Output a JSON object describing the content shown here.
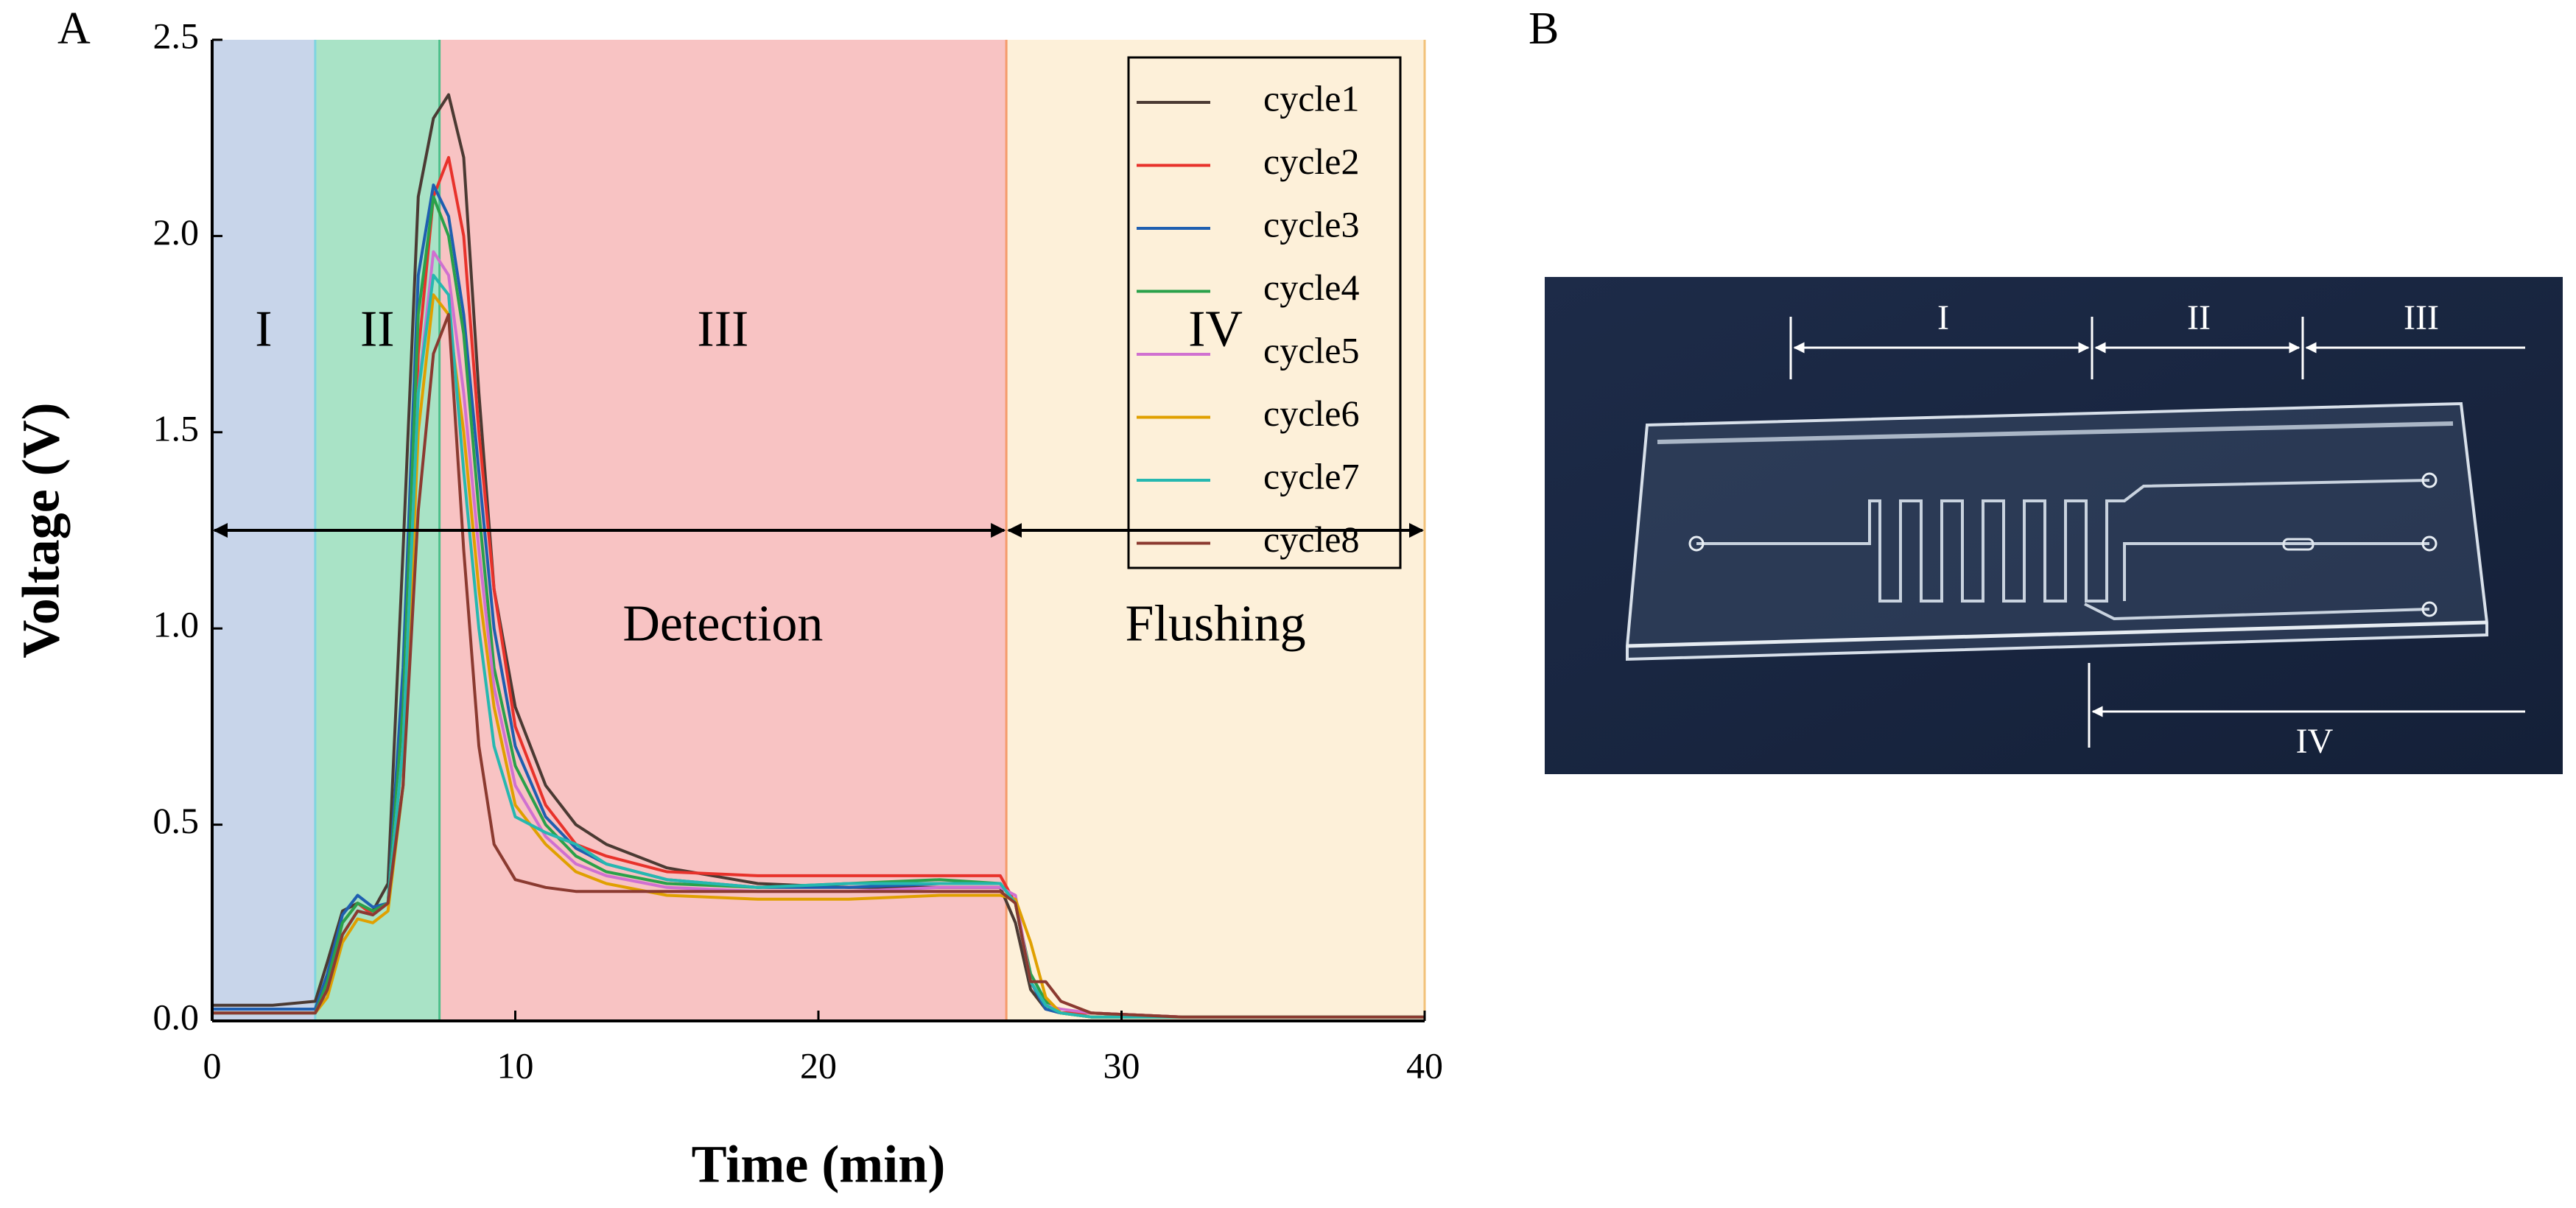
{
  "panels": [
    "A",
    "B"
  ],
  "chart_data": {
    "type": "line",
    "x_label": "Time (min)",
    "y_label": "Voltage (V)",
    "xlim": [
      0,
      40
    ],
    "ylim": [
      0,
      2.5
    ],
    "xticks": [
      0,
      10,
      20,
      30,
      40
    ],
    "yticks": [
      {
        "value": 0,
        "label": "0.0"
      },
      0.5,
      {
        "value": 1,
        "label": "1.0"
      },
      1.5,
      {
        "value": 2,
        "label": "2.0"
      },
      2.5
    ],
    "regions": [
      {
        "label": "I",
        "start": 0,
        "end": 3.4,
        "color": "#c8d5ea",
        "edge": "#7fd4e0"
      },
      {
        "label": "II",
        "start": 3.4,
        "end": 7.5,
        "color": "#a9e3c6",
        "edge": "#4cc08a"
      },
      {
        "label": "III",
        "start": 7.5,
        "end": 26.2,
        "color": "#f8c3c3",
        "edge": "#f59a6a"
      },
      {
        "label": "IV",
        "start": 26.2,
        "end": 40,
        "color": "#fdf0d9",
        "edge": "#f2c27a"
      }
    ],
    "arrows": [
      {
        "label": "Detection",
        "start": 0,
        "end": 26.2
      },
      {
        "label": "Flushing",
        "start": 26.2,
        "end": 40
      }
    ],
    "x": [
      0,
      2,
      3.4,
      3.8,
      4.3,
      4.8,
      5.3,
      5.8,
      6.3,
      6.8,
      7.3,
      7.8,
      8.3,
      8.8,
      9.3,
      10,
      11,
      12,
      13,
      15,
      18,
      21,
      24,
      26,
      26.5,
      27,
      27.5,
      28,
      29,
      32,
      36,
      40
    ],
    "series": [
      {
        "name": "cycle1",
        "color": "#4b3a33",
        "values": [
          0.04,
          0.04,
          0.05,
          0.15,
          0.28,
          0.3,
          0.28,
          0.35,
          1.2,
          2.1,
          2.3,
          2.36,
          2.2,
          1.6,
          1.1,
          0.8,
          0.6,
          0.5,
          0.45,
          0.39,
          0.35,
          0.34,
          0.34,
          0.34,
          0.25,
          0.08,
          0.03,
          0.02,
          0.02,
          0.01,
          0.01,
          0.01
        ]
      },
      {
        "name": "cycle2",
        "color": "#e8322b",
        "values": [
          0.02,
          0.02,
          0.02,
          0.1,
          0.25,
          0.3,
          0.27,
          0.3,
          0.6,
          1.7,
          2.1,
          2.2,
          2.0,
          1.5,
          1.1,
          0.75,
          0.55,
          0.45,
          0.42,
          0.38,
          0.37,
          0.37,
          0.37,
          0.37,
          0.3,
          0.1,
          0.04,
          0.02,
          0.02,
          0.01,
          0.01,
          0.01
        ]
      },
      {
        "name": "cycle3",
        "color": "#1f5fb0",
        "values": [
          0.03,
          0.03,
          0.03,
          0.12,
          0.27,
          0.32,
          0.29,
          0.3,
          0.9,
          1.9,
          2.13,
          2.05,
          1.8,
          1.4,
          1.0,
          0.7,
          0.52,
          0.44,
          0.4,
          0.36,
          0.34,
          0.34,
          0.35,
          0.35,
          0.3,
          0.1,
          0.03,
          0.02,
          0.01,
          0.01,
          0.01,
          0.01
        ]
      },
      {
        "name": "cycle4",
        "color": "#2aa14a",
        "values": [
          0.02,
          0.02,
          0.02,
          0.1,
          0.25,
          0.3,
          0.28,
          0.3,
          0.8,
          1.8,
          2.1,
          2.0,
          1.75,
          1.3,
          0.9,
          0.65,
          0.5,
          0.42,
          0.38,
          0.35,
          0.34,
          0.35,
          0.36,
          0.35,
          0.3,
          0.12,
          0.05,
          0.02,
          0.01,
          0.01,
          0.01,
          0.01
        ]
      },
      {
        "name": "cycle5",
        "color": "#d070d0",
        "values": [
          0.02,
          0.02,
          0.02,
          0.08,
          0.22,
          0.28,
          0.27,
          0.3,
          0.7,
          1.6,
          1.96,
          1.9,
          1.6,
          1.2,
          0.85,
          0.6,
          0.47,
          0.4,
          0.37,
          0.34,
          0.33,
          0.33,
          0.34,
          0.34,
          0.32,
          0.1,
          0.04,
          0.03,
          0.02,
          0.01,
          0.01,
          0.01
        ]
      },
      {
        "name": "cycle6",
        "color": "#e0a000",
        "values": [
          0.02,
          0.02,
          0.02,
          0.06,
          0.2,
          0.26,
          0.25,
          0.28,
          0.6,
          1.5,
          1.85,
          1.8,
          1.5,
          1.1,
          0.8,
          0.55,
          0.45,
          0.38,
          0.35,
          0.32,
          0.31,
          0.31,
          0.32,
          0.32,
          0.31,
          0.2,
          0.06,
          0.02,
          0.01,
          0.01,
          0.01,
          0.01
        ]
      },
      {
        "name": "cycle7",
        "color": "#26b8b0",
        "values": [
          0.02,
          0.02,
          0.02,
          0.08,
          0.22,
          0.28,
          0.27,
          0.3,
          0.7,
          1.6,
          1.9,
          1.85,
          1.4,
          1.0,
          0.7,
          0.52,
          0.48,
          0.45,
          0.4,
          0.36,
          0.34,
          0.35,
          0.35,
          0.35,
          0.3,
          0.1,
          0.04,
          0.02,
          0.01,
          0.01,
          0.01,
          0.01
        ]
      },
      {
        "name": "cycle8",
        "color": "#8b3a30",
        "values": [
          0.02,
          0.02,
          0.02,
          0.08,
          0.22,
          0.28,
          0.27,
          0.3,
          0.6,
          1.3,
          1.7,
          1.8,
          1.2,
          0.7,
          0.45,
          0.36,
          0.34,
          0.33,
          0.33,
          0.33,
          0.33,
          0.33,
          0.33,
          0.33,
          0.3,
          0.1,
          0.1,
          0.05,
          0.02,
          0.01,
          0.01,
          0.01
        ]
      }
    ]
  },
  "photo": {
    "labels": [
      "I",
      "II",
      "III",
      "IV"
    ]
  }
}
